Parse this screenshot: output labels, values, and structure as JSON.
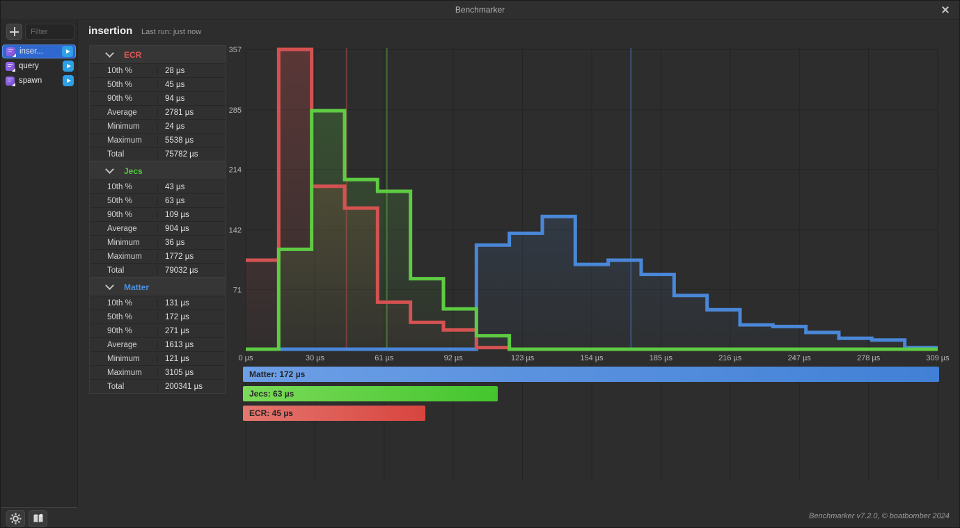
{
  "window": {
    "title": "Benchmarker"
  },
  "sidebar": {
    "filter_placeholder": "Filter",
    "items": [
      {
        "label": "inser...",
        "selected": true
      },
      {
        "label": "query",
        "selected": false
      },
      {
        "label": "spawn",
        "selected": false
      }
    ],
    "item_icon": "module-script-icon",
    "run_icon": "play-icon"
  },
  "header": {
    "title": "insertion",
    "last_run": "Last run: just now"
  },
  "stats": {
    "sections": [
      {
        "name": "ECR",
        "color": "#e05756",
        "rows": [
          [
            "10th %",
            "28 µs"
          ],
          [
            "50th %",
            "45 µs"
          ],
          [
            "90th %",
            "94 µs"
          ],
          [
            "Average",
            "2781 µs"
          ],
          [
            "Minimum",
            "24 µs"
          ],
          [
            "Maximum",
            "5538 µs"
          ],
          [
            "Total",
            "75782 µs"
          ]
        ]
      },
      {
        "name": "Jecs",
        "color": "#54c83d",
        "rows": [
          [
            "10th %",
            "43 µs"
          ],
          [
            "50th %",
            "63 µs"
          ],
          [
            "90th %",
            "109 µs"
          ],
          [
            "Average",
            "904 µs"
          ],
          [
            "Minimum",
            "36 µs"
          ],
          [
            "Maximum",
            "1772 µs"
          ],
          [
            "Total",
            "79032 µs"
          ]
        ]
      },
      {
        "name": "Matter",
        "color": "#4e8fdf",
        "rows": [
          [
            "10th %",
            "131 µs"
          ],
          [
            "50th %",
            "172 µs"
          ],
          [
            "90th %",
            "271 µs"
          ],
          [
            "Average",
            "1613 µs"
          ],
          [
            "Minimum",
            "121 µs"
          ],
          [
            "Maximum",
            "3105 µs"
          ],
          [
            "Total",
            "200341 µs"
          ]
        ]
      }
    ]
  },
  "chart_data": {
    "type": "step-histogram",
    "x_unit": "µs",
    "x_range": [
      0,
      309
    ],
    "y_range": [
      0,
      357
    ],
    "x_tick_labels": [
      "0 µs",
      "30 µs",
      "61 µs",
      "92 µs",
      "123 µs",
      "154 µs",
      "185 µs",
      "216 µs",
      "247 µs",
      "278 µs",
      "309 µs"
    ],
    "y_ticks": [
      71,
      142,
      214,
      285,
      357
    ],
    "bin_width_us": 14.714,
    "grid": true,
    "series": [
      {
        "name": "Matter",
        "color": "#4a87d8",
        "median_us": 172,
        "values": [
          0,
          0,
          0,
          0,
          0,
          0,
          0,
          124,
          138,
          158,
          101,
          106,
          89,
          64,
          47,
          29,
          27,
          20,
          13,
          11,
          2
        ]
      },
      {
        "name": "ECR",
        "color": "#d45251",
        "median_us": 45,
        "values": [
          106,
          357,
          194,
          168,
          56,
          32,
          23,
          2,
          0,
          0,
          0,
          0,
          0,
          0,
          0,
          0,
          0,
          0,
          0,
          0,
          0
        ]
      },
      {
        "name": "Jecs",
        "color": "#5ecb43",
        "median_us": 63,
        "values": [
          0,
          119,
          284,
          202,
          188,
          84,
          48,
          16,
          0,
          0,
          0,
          0,
          0,
          0,
          0,
          0,
          0,
          0,
          0,
          0,
          0
        ]
      }
    ],
    "legend_bars": [
      {
        "label": "Matter: 172 µs",
        "value_us": 172,
        "color_from": "#6d9fe6",
        "color_to": "#4180d6"
      },
      {
        "label": "Jecs: 63 µs",
        "value_us": 63,
        "color_from": "#7bdb59",
        "color_to": "#44c52e"
      },
      {
        "label": "ECR: 45 µs",
        "value_us": 45,
        "color_from": "#e4776f",
        "color_to": "#d8443e"
      }
    ]
  },
  "footer": {
    "version": "Benchmarker v7.2.0, © boatbomber 2024",
    "icons": [
      "settings-gear-icon",
      "docs-book-icon"
    ]
  }
}
